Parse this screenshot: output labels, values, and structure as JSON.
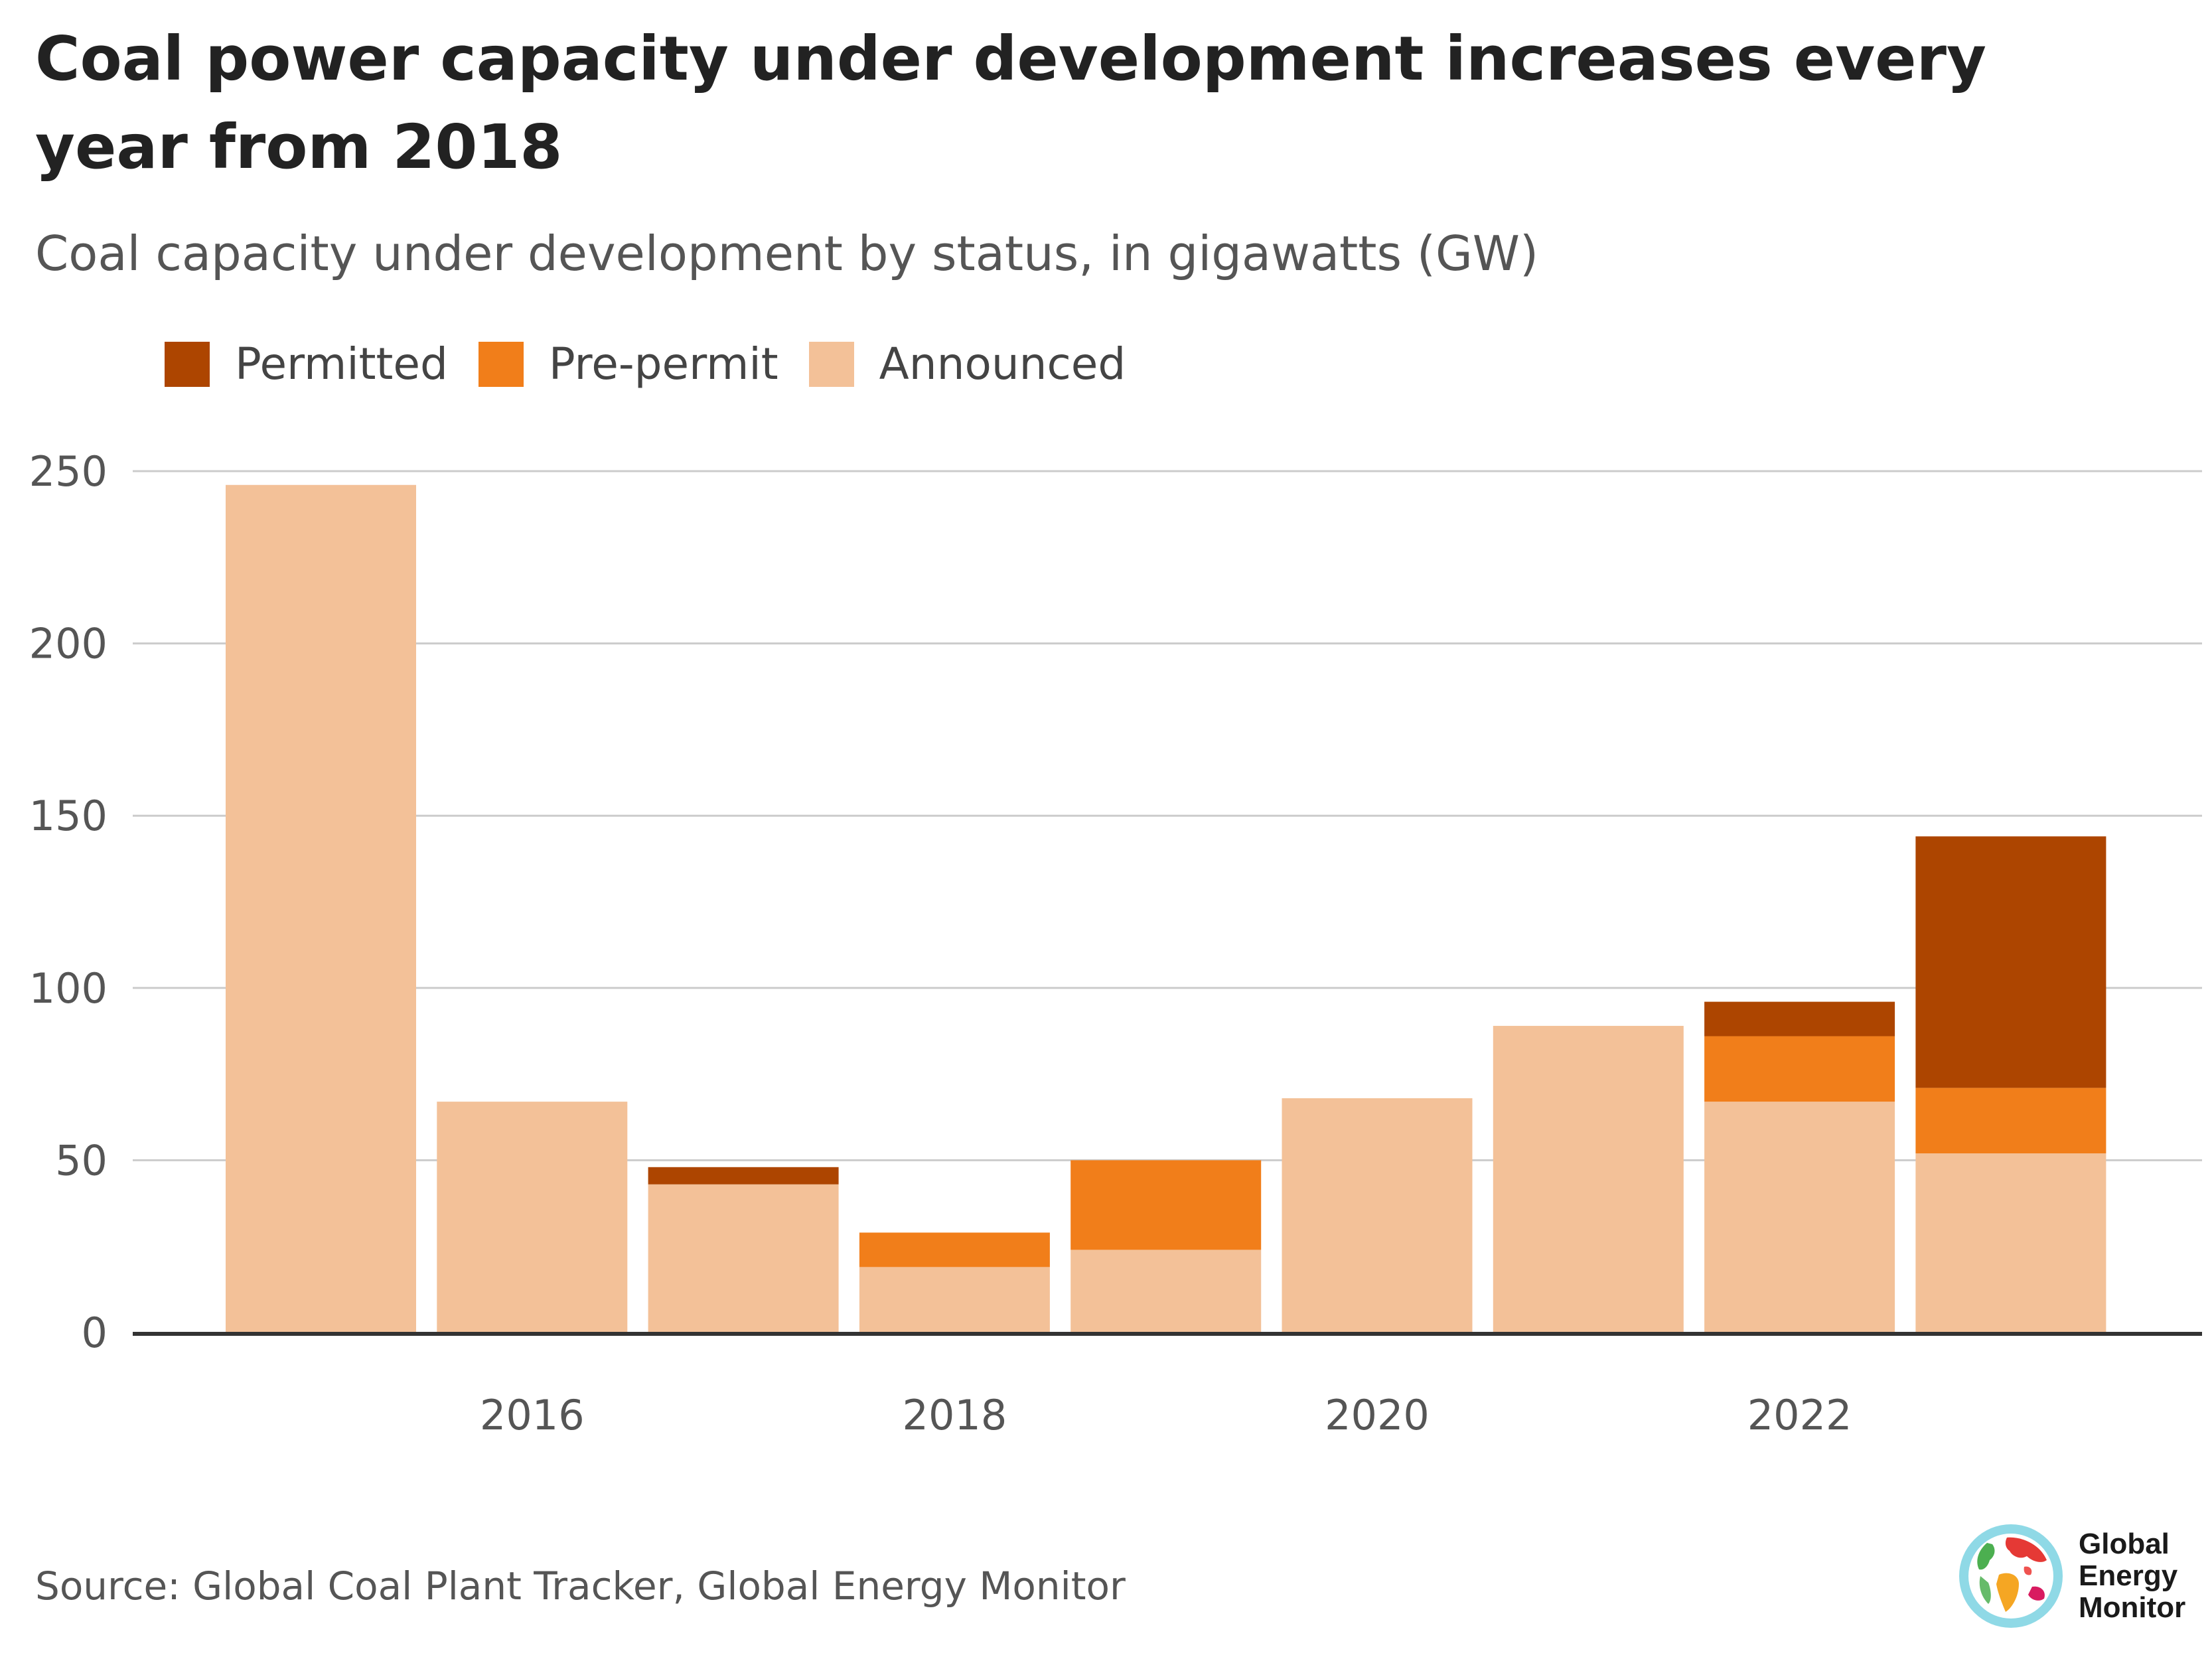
{
  "title": "Coal power capacity under development increases every year from 2018",
  "subtitle": "Coal capacity under development by status, in gigawatts (GW)",
  "source": "Source: Global Coal Plant Tracker, Global Energy Monitor",
  "logo": {
    "icon": "globe-icon",
    "line1": "Global",
    "line2": "Energy",
    "line3": "Monitor"
  },
  "colors": {
    "permitted": "#ad4500",
    "pre_permit": "#f17e1a",
    "announced": "#f3c198",
    "gridline": "#cccccc",
    "baseline": "#333333"
  },
  "chart_data": {
    "type": "bar",
    "stacked": true,
    "x": [
      2015,
      2016,
      2017,
      2018,
      2019,
      2020,
      2021,
      2022,
      2023
    ],
    "xticks": [
      "2016",
      "2018",
      "2020",
      "2022"
    ],
    "xtick_years": [
      2016,
      2018,
      2020,
      2022
    ],
    "yticks": [
      "0",
      "50",
      "100",
      "150",
      "200",
      "250"
    ],
    "ytick_values": [
      0,
      50,
      100,
      150,
      200,
      250
    ],
    "ylim": [
      0,
      250
    ],
    "grid": true,
    "legend_position": "top-left",
    "legend": [
      "Permitted",
      "Pre-permit",
      "Announced"
    ],
    "series": [
      {
        "name": "Announced",
        "key": "announced",
        "values": [
          246,
          67,
          43,
          19,
          24,
          68,
          89,
          67,
          52
        ]
      },
      {
        "name": "Pre-permit",
        "key": "pre_permit",
        "values": [
          0,
          0,
          0,
          10,
          26,
          0,
          0,
          19,
          19
        ]
      },
      {
        "name": "Permitted",
        "key": "permitted",
        "values": [
          0,
          0,
          5,
          0,
          0,
          0,
          0,
          10,
          73
        ]
      }
    ]
  }
}
